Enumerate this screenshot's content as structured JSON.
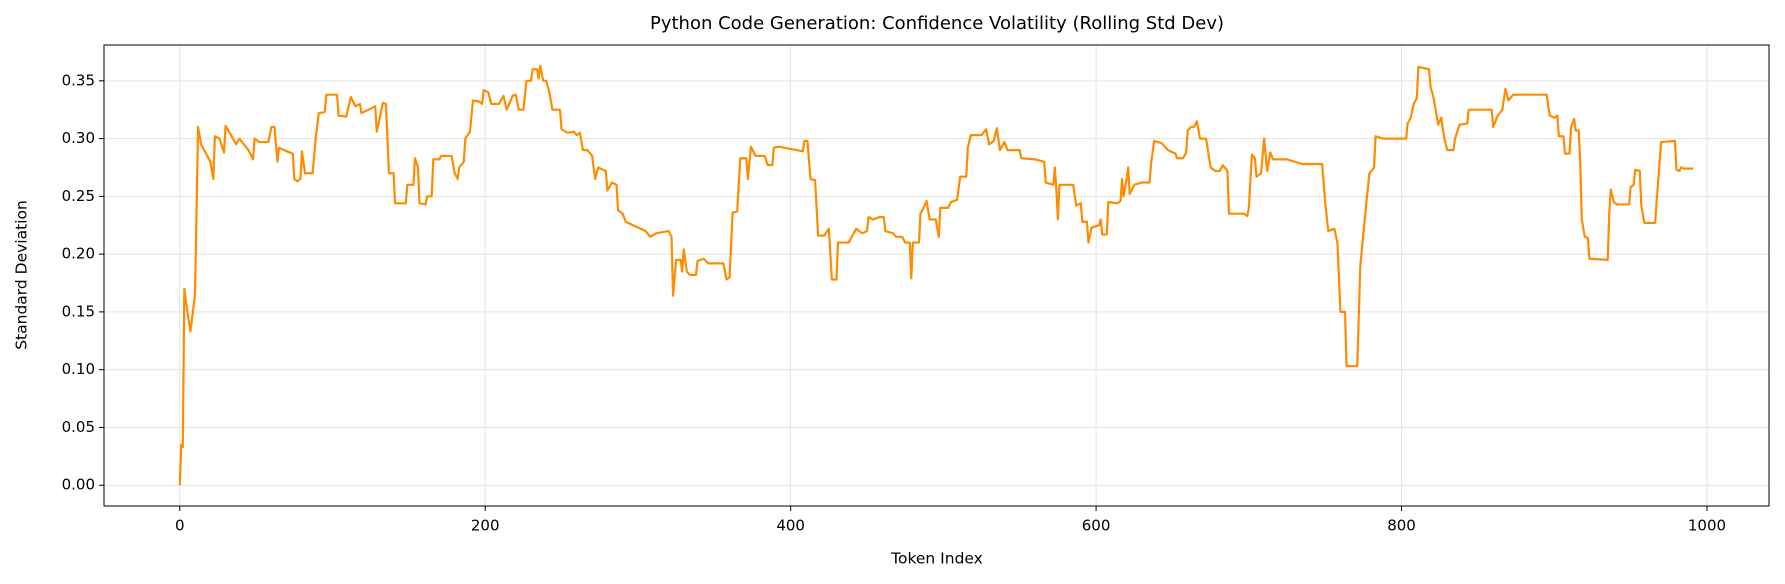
{
  "chart_data": {
    "type": "line",
    "title": "Python Code Generation: Confidence Volatility (Rolling Std Dev)",
    "x_label": "Token Index",
    "y_label": "Standard Deviation",
    "color": "#ff8c00",
    "grid": true,
    "xlim": [
      -49.6,
      1040.6
    ],
    "ylim": [
      -0.018,
      0.381
    ],
    "xticks": [
      0,
      200,
      400,
      600,
      800,
      1000
    ],
    "yticks": [
      {
        "value": 0,
        "label": "0.00"
      },
      0.05,
      {
        "value": 0.1,
        "label": "0.10"
      },
      0.15,
      {
        "value": 0.2,
        "label": "0.20"
      },
      0.25,
      {
        "value": 0.3,
        "label": "0.30"
      },
      0.35
    ],
    "x": [
      0,
      1,
      2,
      3,
      5,
      7,
      10,
      12,
      14,
      20,
      22,
      23,
      26,
      29,
      30,
      34,
      37,
      39,
      45,
      48,
      49,
      52,
      58,
      60,
      62,
      64,
      65,
      70,
      74,
      75,
      77,
      79,
      80,
      82,
      87,
      89,
      91,
      95,
      96,
      103,
      104,
      109,
      112,
      115,
      118,
      119,
      125,
      128,
      129,
      131,
      133,
      135,
      137,
      140,
      141,
      148,
      149,
      153,
      154,
      156,
      157,
      161,
      162,
      165,
      166,
      170,
      171,
      178,
      180,
      182,
      183,
      186,
      187,
      190,
      192,
      196,
      198,
      199,
      202,
      204,
      209,
      212,
      214,
      218,
      220,
      222,
      225,
      227,
      230,
      231,
      234,
      235,
      236,
      238,
      240,
      242,
      244,
      249,
      250,
      254,
      258,
      260,
      262,
      264,
      267,
      270,
      272,
      274,
      279,
      280,
      283,
      286,
      287,
      290,
      292,
      300,
      305,
      308,
      312,
      320,
      322,
      323,
      325,
      328,
      329,
      330,
      332,
      334,
      338,
      339,
      343,
      346,
      356,
      358,
      360,
      362,
      365,
      367,
      371,
      372,
      374,
      377,
      383,
      385,
      388,
      389,
      392,
      400,
      408,
      409,
      411,
      413,
      416,
      418,
      422,
      425,
      427,
      430,
      431,
      438,
      440,
      443,
      447,
      450,
      451,
      454,
      458,
      461,
      462,
      467,
      469,
      473,
      475,
      478,
      479,
      480,
      484,
      485,
      487,
      489,
      491,
      495,
      497,
      498,
      503,
      505,
      509,
      511,
      515,
      516,
      518,
      525,
      528,
      530,
      533,
      535,
      537,
      540,
      542,
      550,
      551,
      560,
      566,
      567,
      572,
      573,
      574,
      575,
      576,
      585,
      587,
      590,
      591,
      594,
      595,
      597,
      602,
      603,
      604,
      607,
      608,
      614,
      616,
      617,
      618,
      620,
      621,
      622,
      625,
      630,
      635,
      636,
      638,
      643,
      647,
      652,
      653,
      657,
      659,
      660,
      662,
      664,
      666,
      668,
      672,
      675,
      678,
      681,
      683,
      686,
      687,
      697,
      699,
      700,
      702,
      704,
      705,
      708,
      710,
      712,
      714,
      716,
      725,
      735,
      740,
      748,
      750,
      752,
      756,
      758,
      760,
      763,
      764,
      771,
      773,
      777,
      779,
      782,
      783,
      788,
      793,
      803,
      804,
      806,
      808,
      810,
      811,
      818,
      819,
      821,
      824,
      826,
      828,
      830,
      834,
      835,
      838,
      843,
      844,
      859,
      860,
      863,
      866,
      868,
      870,
      873,
      895,
      897,
      900,
      902,
      903,
      906,
      907,
      910,
      911,
      913,
      914,
      916,
      917,
      918,
      920,
      922,
      923,
      935,
      936,
      937,
      939,
      941,
      949,
      950,
      952,
      953,
      956,
      957,
      959,
      966,
      967,
      969,
      970,
      979,
      980,
      982,
      983,
      985,
      991
    ],
    "values": [
      0,
      0.035,
      0.033,
      0.17,
      0.15,
      0.133,
      0.165,
      0.31,
      0.295,
      0.28,
      0.265,
      0.302,
      0.3,
      0.288,
      0.311,
      0.302,
      0.295,
      0.3,
      0.29,
      0.282,
      0.3,
      0.297,
      0.297,
      0.31,
      0.31,
      0.28,
      0.292,
      0.289,
      0.287,
      0.265,
      0.263,
      0.265,
      0.289,
      0.27,
      0.27,
      0.3,
      0.322,
      0.323,
      0.338,
      0.338,
      0.32,
      0.319,
      0.336,
      0.328,
      0.33,
      0.322,
      0.326,
      0.328,
      0.306,
      0.318,
      0.331,
      0.33,
      0.27,
      0.27,
      0.244,
      0.244,
      0.26,
      0.26,
      0.283,
      0.275,
      0.244,
      0.243,
      0.25,
      0.25,
      0.282,
      0.282,
      0.285,
      0.285,
      0.27,
      0.265,
      0.275,
      0.28,
      0.3,
      0.306,
      0.333,
      0.332,
      0.33,
      0.342,
      0.34,
      0.33,
      0.33,
      0.337,
      0.325,
      0.337,
      0.338,
      0.325,
      0.325,
      0.35,
      0.35,
      0.36,
      0.36,
      0.352,
      0.363,
      0.35,
      0.35,
      0.34,
      0.325,
      0.325,
      0.308,
      0.305,
      0.306,
      0.303,
      0.305,
      0.29,
      0.29,
      0.285,
      0.265,
      0.275,
      0.272,
      0.255,
      0.262,
      0.26,
      0.238,
      0.235,
      0.228,
      0.223,
      0.22,
      0.215,
      0.218,
      0.22,
      0.215,
      0.164,
      0.195,
      0.195,
      0.185,
      0.204,
      0.185,
      0.182,
      0.182,
      0.194,
      0.196,
      0.192,
      0.192,
      0.178,
      0.18,
      0.236,
      0.237,
      0.283,
      0.283,
      0.265,
      0.293,
      0.285,
      0.285,
      0.277,
      0.277,
      0.292,
      0.293,
      0.291,
      0.289,
      0.298,
      0.298,
      0.265,
      0.264,
      0.216,
      0.216,
      0.222,
      0.178,
      0.178,
      0.21,
      0.21,
      0.215,
      0.222,
      0.218,
      0.22,
      0.232,
      0.23,
      0.232,
      0.232,
      0.22,
      0.218,
      0.215,
      0.215,
      0.21,
      0.21,
      0.179,
      0.21,
      0.21,
      0.235,
      0.24,
      0.246,
      0.23,
      0.23,
      0.215,
      0.24,
      0.24,
      0.245,
      0.247,
      0.267,
      0.267,
      0.292,
      0.303,
      0.303,
      0.308,
      0.295,
      0.298,
      0.309,
      0.29,
      0.297,
      0.29,
      0.29,
      0.283,
      0.282,
      0.28,
      0.262,
      0.26,
      0.275,
      0.255,
      0.23,
      0.26,
      0.26,
      0.242,
      0.244,
      0.228,
      0.228,
      0.21,
      0.223,
      0.225,
      0.23,
      0.217,
      0.217,
      0.245,
      0.244,
      0.246,
      0.265,
      0.25,
      0.265,
      0.275,
      0.252,
      0.26,
      0.262,
      0.262,
      0.278,
      0.298,
      0.296,
      0.29,
      0.287,
      0.283,
      0.283,
      0.288,
      0.307,
      0.31,
      0.31,
      0.315,
      0.3,
      0.3,
      0.275,
      0.272,
      0.272,
      0.277,
      0.272,
      0.235,
      0.235,
      0.233,
      0.24,
      0.286,
      0.283,
      0.267,
      0.27,
      0.3,
      0.272,
      0.288,
      0.282,
      0.282,
      0.278,
      0.278,
      0.278,
      0.245,
      0.22,
      0.222,
      0.21,
      0.15,
      0.15,
      0.103,
      0.103,
      0.19,
      0.245,
      0.27,
      0.275,
      0.302,
      0.3,
      0.3,
      0.3,
      0.313,
      0.318,
      0.33,
      0.335,
      0.362,
      0.36,
      0.345,
      0.335,
      0.312,
      0.318,
      0.3,
      0.29,
      0.29,
      0.3,
      0.312,
      0.313,
      0.325,
      0.325,
      0.31,
      0.32,
      0.325,
      0.343,
      0.333,
      0.338,
      0.338,
      0.32,
      0.318,
      0.32,
      0.302,
      0.302,
      0.287,
      0.287,
      0.31,
      0.317,
      0.307,
      0.307,
      0.28,
      0.23,
      0.215,
      0.214,
      0.196,
      0.195,
      0.235,
      0.256,
      0.245,
      0.243,
      0.243,
      0.258,
      0.26,
      0.273,
      0.272,
      0.242,
      0.227,
      0.227,
      0.245,
      0.28,
      0.297,
      0.298,
      0.273,
      0.272,
      0.275,
      0.274,
      0.274
    ]
  }
}
